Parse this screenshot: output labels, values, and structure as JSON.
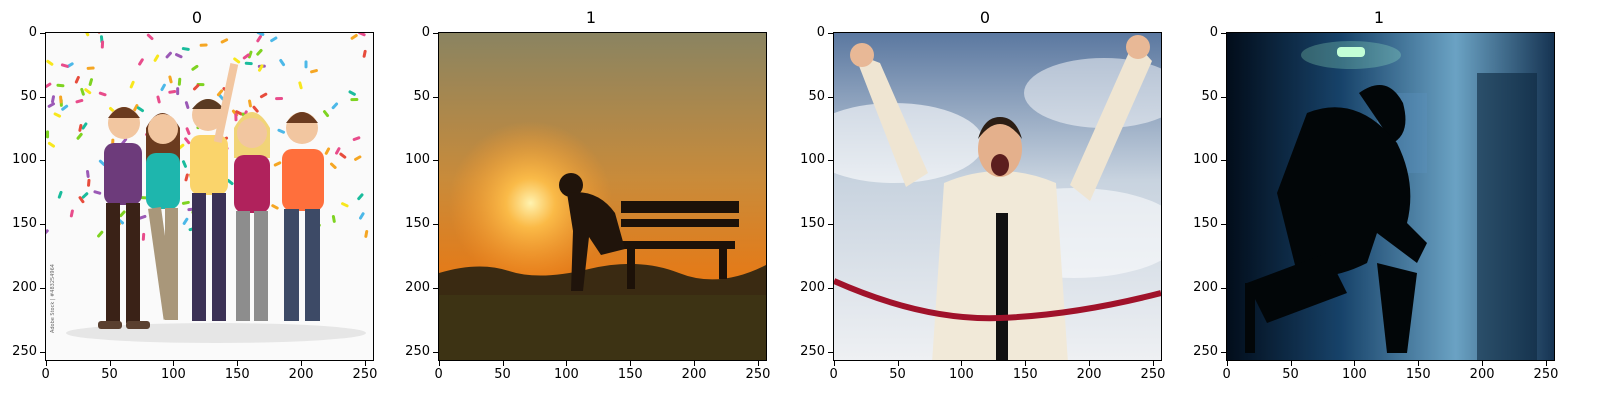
{
  "figure": {
    "panels": [
      {
        "title": "0",
        "scene": "celebrating-group",
        "xticks": [
          "0",
          "50",
          "100",
          "150",
          "200",
          "250"
        ],
        "yticks": [
          "0",
          "50",
          "100",
          "150",
          "200",
          "250"
        ],
        "watermark": "Adobe Stock | #483254964"
      },
      {
        "title": "1",
        "scene": "sunset-bench-silhouette",
        "xticks": [
          "0",
          "50",
          "100",
          "150",
          "200",
          "250"
        ],
        "yticks": [
          "0",
          "50",
          "100",
          "150",
          "200",
          "250"
        ]
      },
      {
        "title": "0",
        "scene": "man-winning-finish-line",
        "xticks": [
          "0",
          "50",
          "100",
          "150",
          "200",
          "250"
        ],
        "yticks": [
          "0",
          "50",
          "100",
          "150",
          "200",
          "250"
        ]
      },
      {
        "title": "1",
        "scene": "dark-room-silhouette",
        "xticks": [
          "0",
          "50",
          "100",
          "150",
          "200",
          "250"
        ],
        "yticks": [
          "0",
          "50",
          "100",
          "150",
          "200",
          "250"
        ]
      }
    ]
  },
  "colors": {
    "axis": "#000000",
    "background": "#ffffff"
  }
}
